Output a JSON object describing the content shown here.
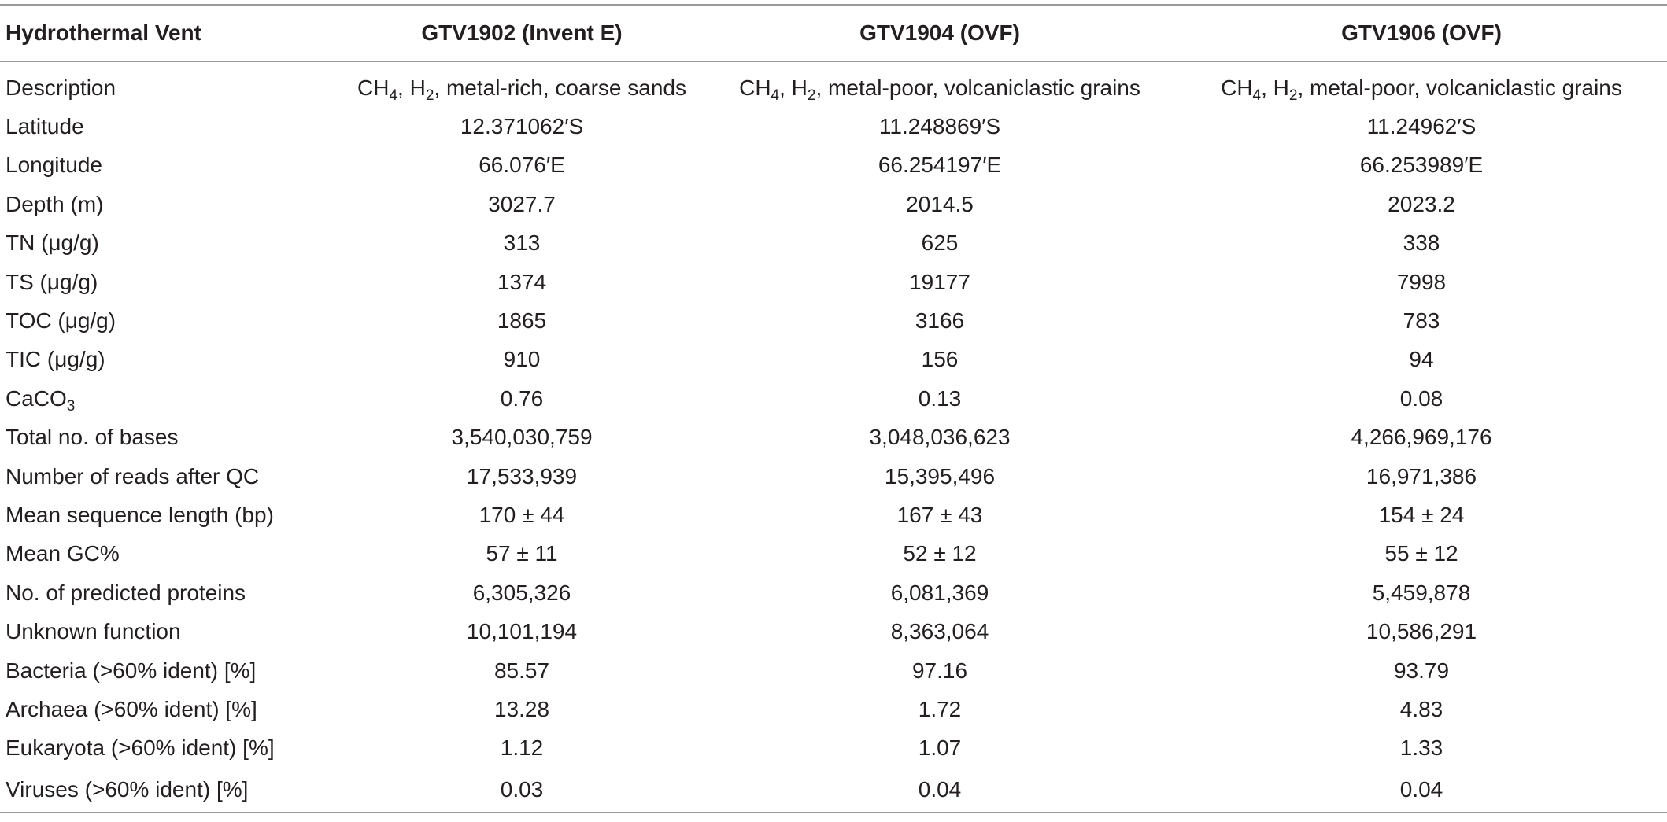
{
  "table": {
    "headers": [
      "Hydrothermal Vent",
      "GTV1902 (Invent E)",
      "GTV1904 (OVF)",
      "GTV1906 (OVF)"
    ],
    "description": {
      "label": "Description",
      "gas_main_1": "CH",
      "gas_sub_1": "4",
      "gas_mid": ", H",
      "gas_sub_2": "2",
      "values": [
        ", metal-rich, coarse sands",
        ", metal-poor, volcaniclastic grains",
        ", metal-poor, volcaniclastic grains"
      ]
    },
    "caco3": {
      "label_main": "CaCO",
      "label_sub": "3",
      "values": [
        "0.76",
        "0.13",
        "0.08"
      ]
    },
    "rows": [
      {
        "label": "Latitude",
        "values": [
          "12.371062′S",
          "11.248869′S",
          "11.24962′S"
        ]
      },
      {
        "label": "Longitude",
        "values": [
          "66.076′E",
          "66.254197′E",
          "66.253989′E"
        ]
      },
      {
        "label": "Depth (m)",
        "values": [
          "3027.7",
          "2014.5",
          "2023.2"
        ]
      },
      {
        "label": "TN (μg/g)",
        "values": [
          "313",
          "625",
          "338"
        ]
      },
      {
        "label": "TS (μg/g)",
        "values": [
          "1374",
          "19177",
          "7998"
        ]
      },
      {
        "label": "TOC (μg/g)",
        "values": [
          "1865",
          "3166",
          "783"
        ]
      },
      {
        "label": "TIC (μg/g)",
        "values": [
          "910",
          "156",
          "94"
        ]
      }
    ],
    "rows_after": [
      {
        "label": "Total no. of bases",
        "values": [
          "3,540,030,759",
          "3,048,036,623",
          "4,266,969,176"
        ]
      },
      {
        "label": "Number of reads after QC",
        "values": [
          "17,533,939",
          "15,395,496",
          "16,971,386"
        ]
      },
      {
        "label": "Mean sequence length (bp)",
        "values": [
          "170 ± 44",
          "167 ± 43",
          "154 ± 24"
        ]
      },
      {
        "label": "Mean GC%",
        "values": [
          "57 ± 11",
          "52 ± 12",
          "55 ± 12"
        ]
      },
      {
        "label": "No. of predicted proteins",
        "values": [
          "6,305,326",
          "6,081,369",
          "5,459,878"
        ]
      },
      {
        "label": "Unknown function",
        "values": [
          "10,101,194",
          "8,363,064",
          "10,586,291"
        ]
      },
      {
        "label": "Bacteria (>60% ident) [%]",
        "values": [
          "85.57",
          "97.16",
          "93.79"
        ]
      },
      {
        "label": "Archaea (>60% ident) [%]",
        "values": [
          "13.28",
          "1.72",
          "4.83"
        ]
      },
      {
        "label": "Eukaryota (>60% ident) [%]",
        "values": [
          "1.12",
          "1.07",
          "1.33"
        ]
      },
      {
        "label": "Viruses (>60% ident) [%]",
        "values": [
          "0.03",
          "0.04",
          "0.04"
        ]
      }
    ]
  }
}
